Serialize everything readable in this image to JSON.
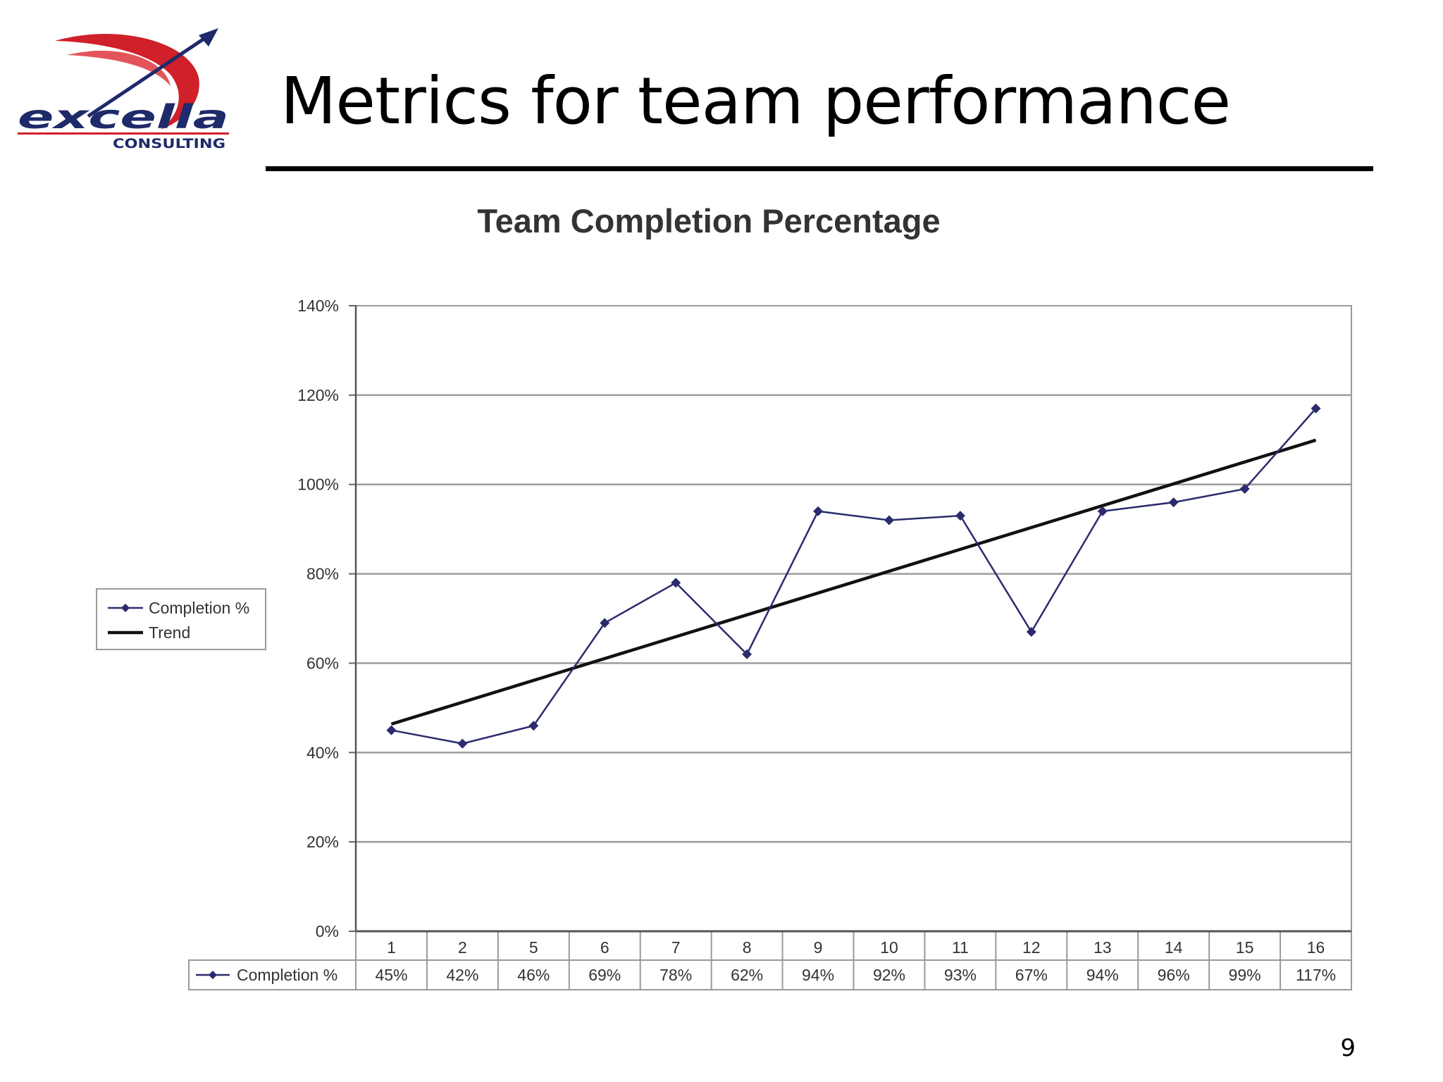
{
  "slide": {
    "title": "Metrics for team performance",
    "page_number": "9",
    "logo": {
      "wordmark": "excella",
      "tagline": "CONSULTING",
      "swoosh_color": "#d0202a",
      "arrow_color": "#1f2a6b"
    }
  },
  "chart_data": {
    "type": "line",
    "title": "Team Completion Percentage",
    "categories": [
      "1",
      "2",
      "5",
      "6",
      "7",
      "8",
      "9",
      "10",
      "11",
      "12",
      "13",
      "14",
      "15",
      "16"
    ],
    "series": [
      {
        "name": "Completion %",
        "values": [
          45,
          42,
          46,
          69,
          78,
          62,
          94,
          92,
          93,
          67,
          94,
          96,
          99,
          117
        ],
        "value_labels": [
          "45%",
          "42%",
          "46%",
          "69%",
          "78%",
          "62%",
          "94%",
          "92%",
          "93%",
          "67%",
          "94%",
          "96%",
          "99%",
          "117%"
        ],
        "color": "#2b2b6e",
        "marker": "diamond"
      },
      {
        "name": "Trend",
        "type": "linear-trendline",
        "color": "#111111"
      }
    ],
    "y_ticks": [
      "0%",
      "20%",
      "40%",
      "60%",
      "80%",
      "100%",
      "120%",
      "140%"
    ],
    "ylim": [
      0,
      140
    ],
    "grid": true,
    "legend_position": "left",
    "data_table_below": true
  }
}
